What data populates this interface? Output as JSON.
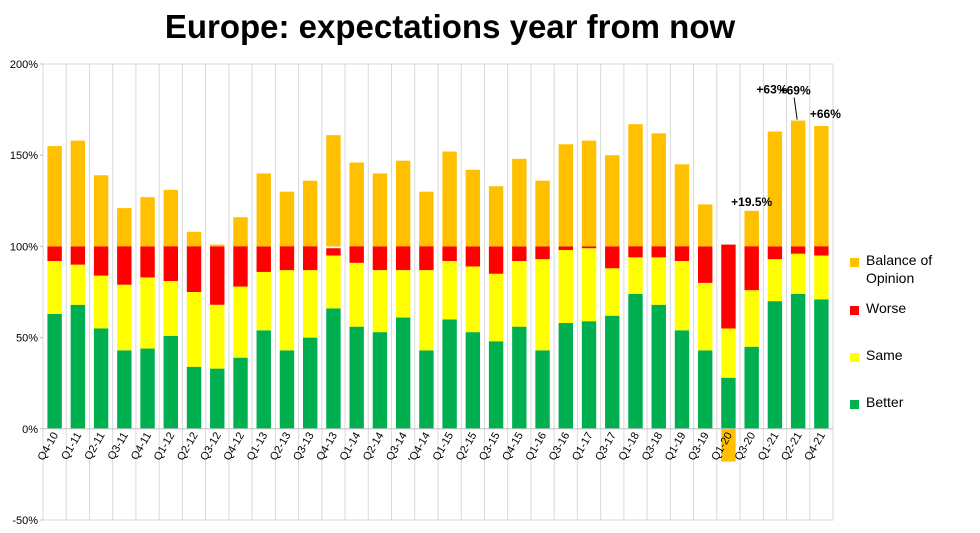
{
  "chart_data": {
    "type": "bar",
    "title": "Europe: expectations year from now",
    "ylim": [
      -50,
      200
    ],
    "yticks": [
      -50,
      0,
      50,
      100,
      150,
      200
    ],
    "ytick_labels": [
      "-50%",
      "0%",
      "50%",
      "100%",
      "150%",
      "200%"
    ],
    "grid": "vertical",
    "legend_position": "right",
    "categories": [
      "Q4-10",
      "Q1-11",
      "Q2-11",
      "Q3-11",
      "Q4-11",
      "Q1-12",
      "Q2-12",
      "Q3-12",
      "Q4-12",
      "Q1-13",
      "Q2-13",
      "Q3-13",
      "Q4-13",
      "Q1-14",
      "Q2-14",
      "Q3-14",
      "'Q4-14",
      "Q1-15",
      "Q2-15",
      "Q3-15",
      "Q4-15",
      "Q1-16",
      "Q3-16",
      "Q1-17",
      "Q3-17",
      "Q1-18",
      "Q3-18",
      "Q1-19",
      "Q3-19",
      "Q1-20",
      "Q3-20",
      "Q1-21",
      "Q2-21",
      "Q4-21"
    ],
    "series": [
      {
        "name": "Better",
        "color": "#00b050",
        "values": [
          63,
          68,
          55,
          43,
          44,
          51,
          34,
          33,
          39,
          54,
          43,
          50,
          66,
          56,
          53,
          61,
          43,
          60,
          53,
          48,
          56,
          43,
          58,
          59,
          62,
          74,
          68,
          54,
          43,
          28,
          45,
          70,
          74,
          71
        ]
      },
      {
        "name": "Same",
        "color": "#ffff00",
        "values": [
          29,
          22,
          29,
          36,
          39,
          30,
          41,
          35,
          39,
          32,
          44,
          37,
          29,
          35,
          34,
          26,
          44,
          32,
          36,
          37,
          36,
          50,
          40,
          40,
          26,
          20,
          26,
          38,
          37,
          27,
          31,
          23,
          22,
          24
        ]
      },
      {
        "name": "Worse",
        "color": "#ff0000",
        "values": [
          8,
          10,
          16,
          22,
          17,
          20,
          26,
          32,
          23,
          14,
          14,
          14,
          4,
          10,
          13,
          14,
          14,
          8,
          11,
          15,
          8,
          7,
          2,
          1,
          12,
          7,
          7,
          9,
          20,
          46,
          25,
          7,
          4,
          6
        ]
      },
      {
        "name": "Balance of Opinion",
        "color": "#ffc000",
        "values": [
          55,
          58,
          39,
          21,
          27,
          31,
          8,
          1,
          16,
          40,
          30,
          36,
          61,
          46,
          40,
          47,
          30,
          52,
          42,
          33,
          48,
          36,
          56,
          58,
          50,
          67,
          62,
          45,
          23,
          -18,
          19.5,
          63,
          69,
          66
        ]
      }
    ],
    "annotations": [
      {
        "category": "Q3-20",
        "text": "+19.5%"
      },
      {
        "category": "Q1-21",
        "text": "+63%"
      },
      {
        "category": "Q2-21",
        "text": "+69%"
      },
      {
        "category": "Q4-21",
        "text": "+66%"
      }
    ]
  },
  "legend": {
    "items": [
      {
        "label_line1": "Balance of",
        "label_line2": "Opinion",
        "color": "#ffc000"
      },
      {
        "label_line1": "Worse",
        "label_line2": "",
        "color": "#ff0000"
      },
      {
        "label_line1": "Same",
        "label_line2": "",
        "color": "#ffff00"
      },
      {
        "label_line1": "Better",
        "label_line2": "",
        "color": "#00b050"
      }
    ]
  }
}
